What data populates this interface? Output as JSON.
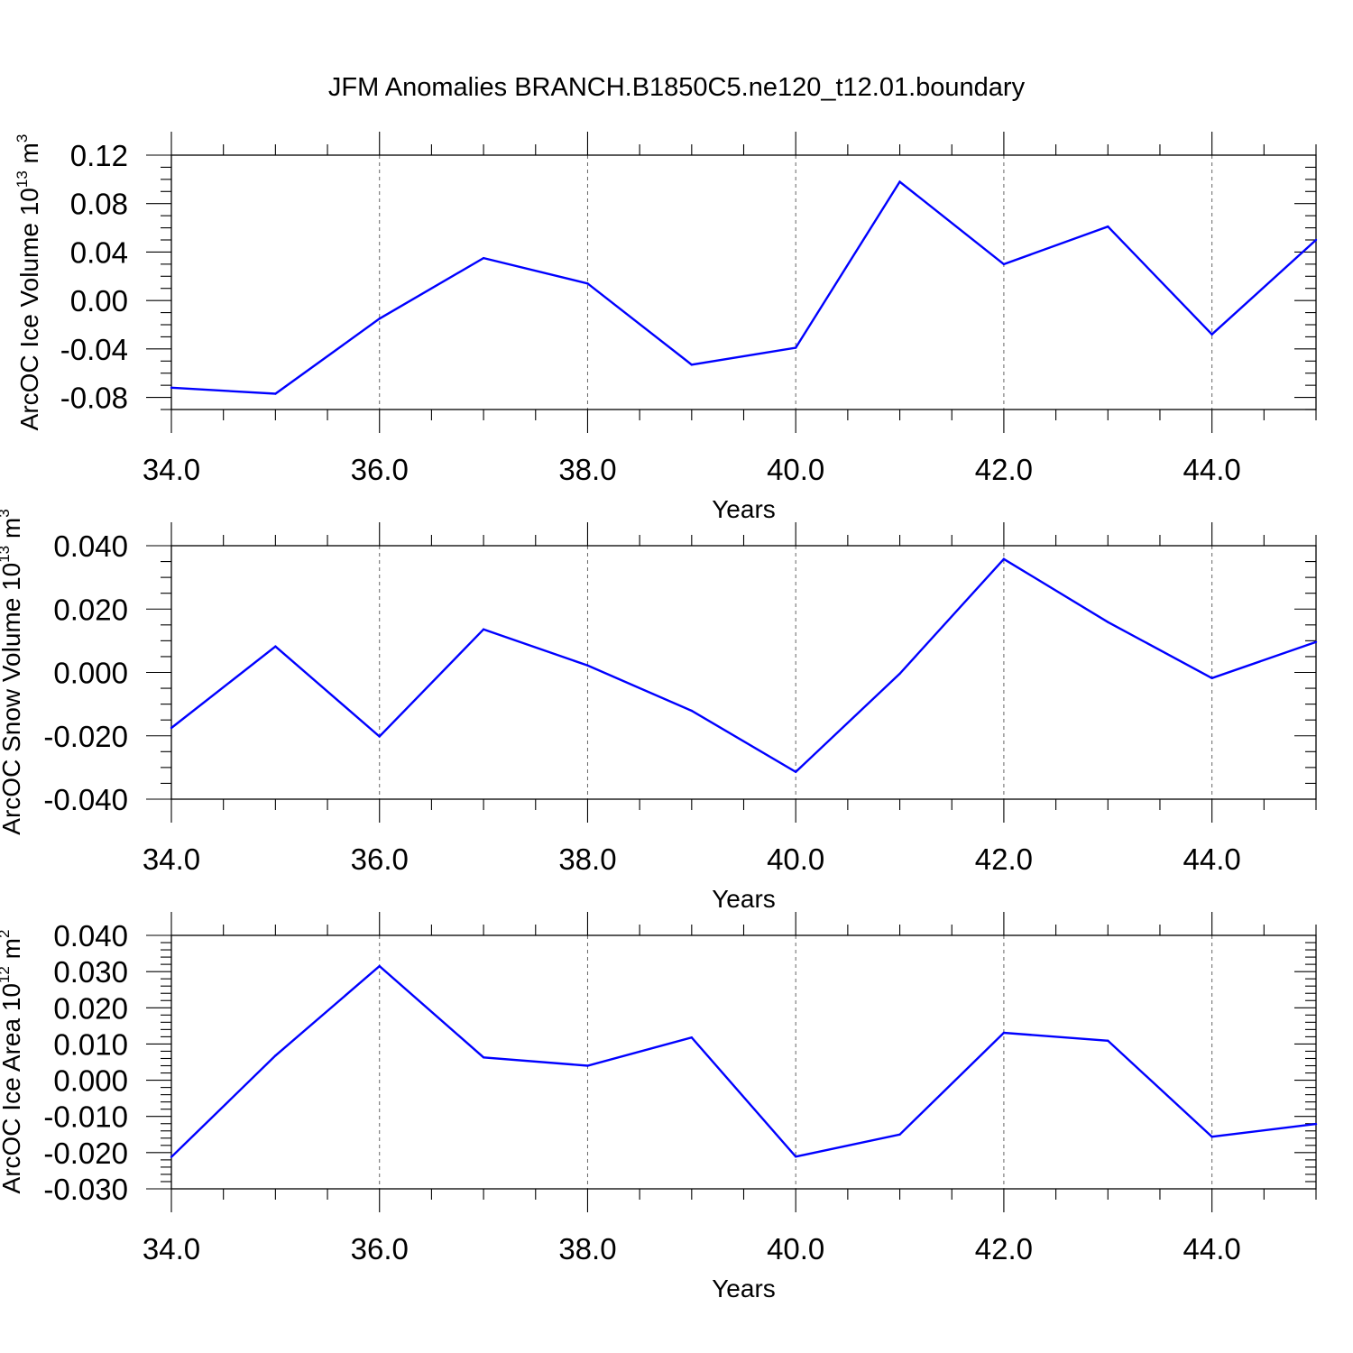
{
  "title": "JFM Anomalies BRANCH.B1850C5.ne120_t12.01.boundary",
  "colors": {
    "series": "#0000ff",
    "grid": "#666666",
    "axes": "#000000"
  },
  "chart_data": [
    {
      "type": "line",
      "ylabel_main": "ArcOC Ice Volume 10",
      "ylabel_exp": "13",
      "ylabel_unit": " m",
      "ylabel_unit_exp": "3",
      "xlabel": "Years",
      "xlim": [
        34,
        45
      ],
      "ylim": [
        -0.09,
        0.12
      ],
      "xticks": [
        34,
        36,
        38,
        40,
        42,
        44
      ],
      "xtick_labels": [
        "34.0",
        "36.0",
        "38.0",
        "40.0",
        "42.0",
        "44.0"
      ],
      "yticks": [
        -0.08,
        -0.04,
        0.0,
        0.04,
        0.08,
        0.12
      ],
      "ytick_labels": [
        "-0.08",
        "-0.04",
        "0.00",
        "0.04",
        "0.08",
        "0.12"
      ],
      "y_minor_step": 0.01,
      "grid": "vertical dashed at major x ticks",
      "x": [
        34,
        35,
        36,
        37,
        38,
        39,
        40,
        41,
        42,
        43,
        44,
        45
      ],
      "series": [
        {
          "values": [
            -0.072,
            -0.077,
            -0.015,
            0.035,
            0.014,
            -0.053,
            -0.039,
            0.098,
            0.03,
            0.061,
            -0.028,
            0.05
          ]
        }
      ]
    },
    {
      "type": "line",
      "ylabel_main": "ArcOC Snow Volume 10",
      "ylabel_exp": "13",
      "ylabel_unit": " m",
      "ylabel_unit_exp": "3",
      "xlabel": "Years",
      "xlim": [
        34,
        45
      ],
      "ylim": [
        -0.04,
        0.04
      ],
      "xticks": [
        34,
        36,
        38,
        40,
        42,
        44
      ],
      "xtick_labels": [
        "34.0",
        "36.0",
        "38.0",
        "40.0",
        "42.0",
        "44.0"
      ],
      "yticks": [
        -0.04,
        -0.02,
        0.0,
        0.02,
        0.04
      ],
      "ytick_labels": [
        "-0.040",
        "-0.020",
        "0.000",
        "0.020",
        "0.040"
      ],
      "y_minor_step": 0.005,
      "grid": "vertical dashed at major x ticks",
      "x": [
        34,
        35,
        36,
        37,
        38,
        39,
        40,
        41,
        42,
        43,
        44,
        45
      ],
      "series": [
        {
          "values": [
            -0.0175,
            0.0082,
            -0.0202,
            0.0136,
            0.0022,
            -0.0121,
            -0.0314,
            -0.0004,
            0.0358,
            0.0159,
            -0.0018,
            0.0096
          ]
        }
      ]
    },
    {
      "type": "line",
      "ylabel_main": "ArcOC Ice Area 10",
      "ylabel_exp": "12",
      "ylabel_unit": " m",
      "ylabel_unit_exp": "2",
      "xlabel": "Years",
      "xlim": [
        34,
        45
      ],
      "ylim": [
        -0.03,
        0.04
      ],
      "xticks": [
        34,
        36,
        38,
        40,
        42,
        44
      ],
      "xtick_labels": [
        "34.0",
        "36.0",
        "38.0",
        "40.0",
        "42.0",
        "44.0"
      ],
      "yticks": [
        -0.03,
        -0.02,
        -0.01,
        0.0,
        0.01,
        0.02,
        0.03,
        0.04
      ],
      "ytick_labels": [
        "-0.030",
        "-0.020",
        "-0.010",
        "0.000",
        "0.010",
        "0.020",
        "0.030",
        "0.040"
      ],
      "y_minor_step": 0.002,
      "grid": "vertical dashed at major x ticks",
      "x": [
        34,
        35,
        36,
        37,
        38,
        39,
        40,
        41,
        42,
        43,
        44,
        45
      ],
      "series": [
        {
          "values": [
            -0.0212,
            0.0068,
            0.0315,
            0.0063,
            0.004,
            0.0118,
            -0.0211,
            -0.015,
            0.0131,
            0.0109,
            -0.0156,
            -0.0121
          ]
        }
      ]
    }
  ]
}
